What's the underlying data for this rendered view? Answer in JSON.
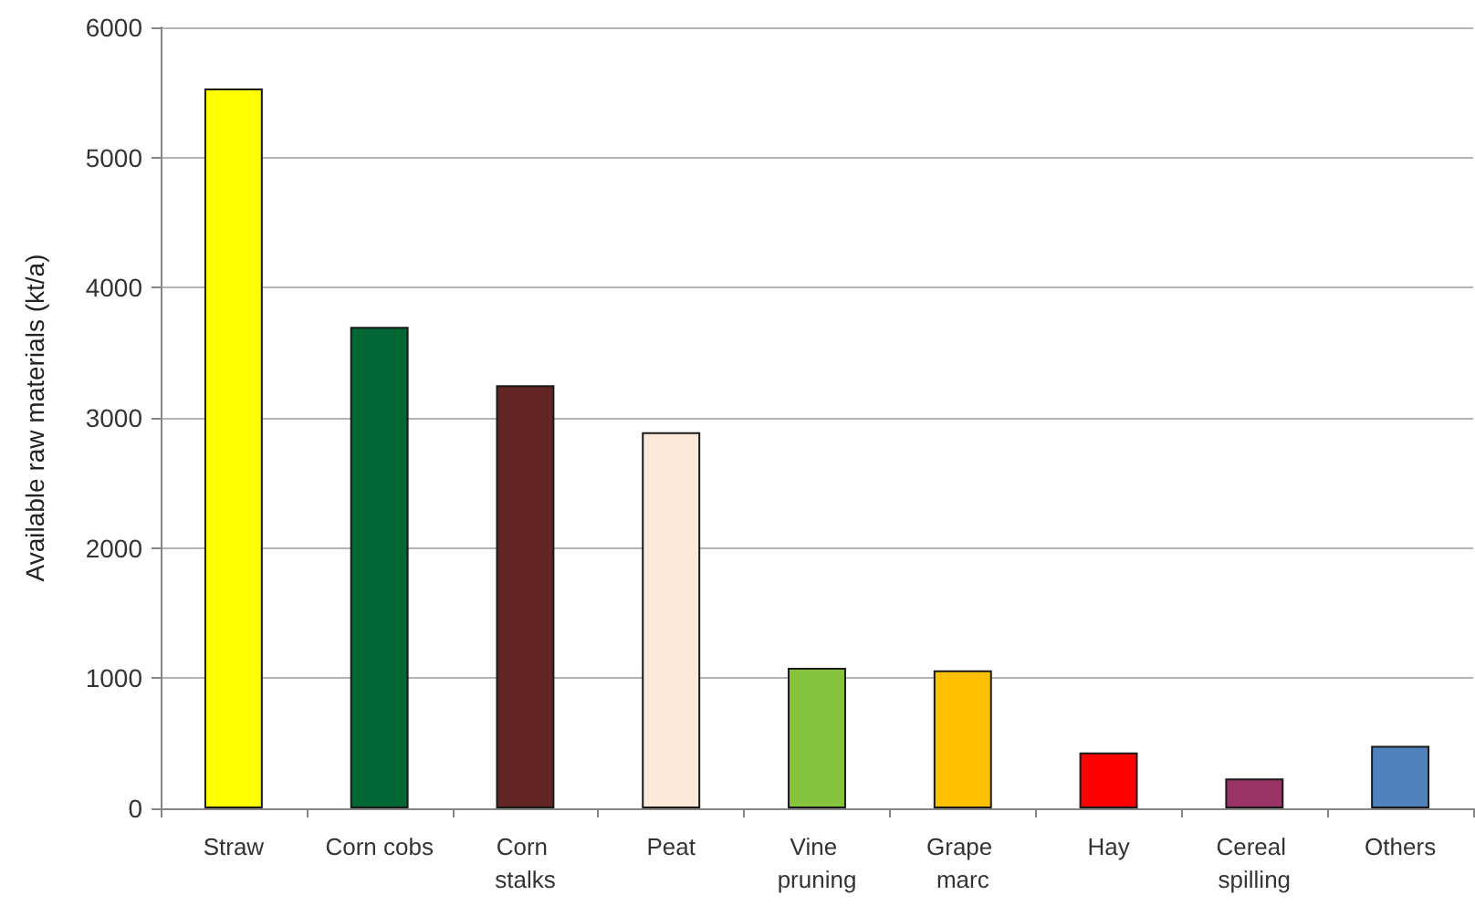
{
  "chart_data": {
    "type": "bar",
    "ylabel": "Available raw materials (kt/a)",
    "categories": [
      "Straw",
      "Corn cobs",
      "Corn stalks",
      "Peat",
      "Vine pruning",
      "Grape marc",
      "Hay",
      "Cereal spilling",
      "Others"
    ],
    "values": [
      5530,
      3700,
      3250,
      2890,
      1080,
      1060,
      430,
      230,
      480
    ],
    "colors": [
      "#ffff00",
      "#006633",
      "#632523",
      "#fde9d9",
      "#86c43d",
      "#ffc000",
      "#ff0000",
      "#993366",
      "#4f81bd"
    ],
    "ylim": [
      0,
      6000
    ],
    "yticks": [
      0,
      1000,
      2000,
      3000,
      4000,
      5000,
      6000
    ],
    "grid": "y"
  }
}
